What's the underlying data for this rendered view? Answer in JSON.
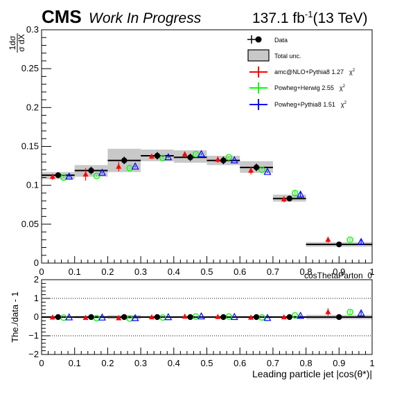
{
  "header": {
    "experiment": "CMS",
    "status": "Work In Progress",
    "lumi_value": "137.1 fb",
    "lumi_exp": "-1",
    "energy": "(13 TeV)"
  },
  "legend": {
    "data": "Data",
    "total_unc": "Total unc.",
    "chi2_symbol": "χ",
    "chi2_exp": "2"
  },
  "colors": {
    "data": "#000000",
    "band": "#c8c8c8",
    "amc": "#ff0000",
    "herwig": "#00ff00",
    "pythia": "#0000ff"
  },
  "chart_data": [
    {
      "type": "scatter",
      "panel": "main",
      "ylabel_num": "1dσ",
      "ylabel_den": "σ dX",
      "xlabel": "cosThetaParton_0",
      "xlim": [
        0,
        1
      ],
      "ylim": [
        0,
        0.3
      ],
      "x_ticks": [
        "0",
        "0.1",
        "0.2",
        "0.3",
        "0.4",
        "0.5",
        "0.6",
        "0.7",
        "0.8",
        "0.9",
        "1"
      ],
      "y_ticks": [
        "0",
        "0.05",
        "0.1",
        "0.15",
        "0.2",
        "0.25",
        "0.3"
      ],
      "bins": [
        [
          0,
          0.1
        ],
        [
          0.1,
          0.2
        ],
        [
          0.2,
          0.3
        ],
        [
          0.3,
          0.4
        ],
        [
          0.4,
          0.5
        ],
        [
          0.5,
          0.6
        ],
        [
          0.6,
          0.7
        ],
        [
          0.7,
          0.8
        ],
        [
          0.8,
          1.0
        ]
      ],
      "data": {
        "name": "Data",
        "x": [
          0.05,
          0.15,
          0.25,
          0.35,
          0.45,
          0.55,
          0.65,
          0.75,
          0.9
        ],
        "y": [
          0.113,
          0.119,
          0.132,
          0.138,
          0.136,
          0.132,
          0.123,
          0.083,
          0.024
        ],
        "err": [
          0.002,
          0.003,
          0.003,
          0.003,
          0.003,
          0.003,
          0.003,
          0.002,
          0.001
        ],
        "unc_low": [
          0.108,
          0.111,
          0.117,
          0.131,
          0.129,
          0.126,
          0.116,
          0.079,
          0.021
        ],
        "unc_high": [
          0.117,
          0.126,
          0.147,
          0.146,
          0.145,
          0.138,
          0.131,
          0.088,
          0.027
        ]
      },
      "series": [
        {
          "name": "amc@NLO+Pythia8",
          "chi2": "1.27",
          "x": [
            0.0333,
            0.1333,
            0.2333,
            0.3333,
            0.4333,
            0.5333,
            0.6333,
            0.7333,
            0.8667
          ],
          "y": [
            0.111,
            0.114,
            0.124,
            0.137,
            0.14,
            0.133,
            0.119,
            0.082,
            0.03
          ],
          "err": [
            0.004,
            0.008,
            0.006,
            0.003,
            0.002,
            0.004,
            0.005,
            0.004,
            0.004
          ]
        },
        {
          "name": "Powheg+Herwig",
          "chi2": "2.55",
          "x": [
            0.0667,
            0.1667,
            0.2667,
            0.3667,
            0.4667,
            0.5667,
            0.6667,
            0.7667,
            0.9333
          ],
          "y": [
            0.11,
            0.112,
            0.122,
            0.135,
            0.14,
            0.136,
            0.12,
            0.09,
            0.03
          ],
          "err": [
            0.001,
            0.001,
            0.001,
            0.001,
            0.001,
            0.001,
            0.001,
            0.004,
            0.002
          ]
        },
        {
          "name": "Powheg+Pythia8",
          "chi2": "1.51",
          "x": [
            0.0833,
            0.1833,
            0.2833,
            0.3833,
            0.4833,
            0.5833,
            0.6833,
            0.7833,
            0.9667
          ],
          "y": [
            0.111,
            0.116,
            0.124,
            0.136,
            0.14,
            0.132,
            0.117,
            0.088,
            0.027
          ],
          "err": [
            0.001,
            0.001,
            0.001,
            0.001,
            0.001,
            0.001,
            0.001,
            0.003,
            0.003
          ]
        }
      ]
    },
    {
      "type": "scatter",
      "panel": "ratio",
      "ylabel": "The./data - 1",
      "xlabel": "Leading particle  jet |cos(θ*)|",
      "xlim": [
        0,
        1
      ],
      "ylim": [
        -2,
        2
      ],
      "x_ticks": [
        "0",
        "0.1",
        "0.2",
        "0.3",
        "0.4",
        "0.5",
        "0.6",
        "0.7",
        "0.8",
        "0.9",
        "1"
      ],
      "y_ticks": [
        "−2",
        "−1",
        "0",
        "1",
        "2"
      ],
      "dotted_lines": [
        -1,
        1
      ],
      "data": {
        "x": [
          0.05,
          0.15,
          0.25,
          0.35,
          0.45,
          0.55,
          0.65,
          0.75,
          0.9
        ],
        "y": [
          0,
          0,
          0,
          0,
          0,
          0,
          0,
          0,
          0
        ],
        "unc_low": [
          -0.05,
          -0.07,
          -0.11,
          -0.05,
          -0.05,
          -0.05,
          -0.06,
          -0.05,
          -0.12
        ],
        "unc_high": [
          0.05,
          0.07,
          0.11,
          0.05,
          0.05,
          0.05,
          0.06,
          0.05,
          0.12
        ]
      },
      "series": [
        {
          "name": "amc@NLO+Pythia8",
          "x": [
            0.0333,
            0.1333,
            0.2333,
            0.3333,
            0.4333,
            0.5333,
            0.6333,
            0.7333,
            0.8667
          ],
          "y": [
            -0.02,
            -0.04,
            -0.06,
            -0.01,
            0.03,
            0.01,
            -0.03,
            -0.01,
            0.27
          ],
          "err": [
            0.04,
            0.07,
            0.05,
            0.03,
            0.02,
            0.03,
            0.04,
            0.05,
            0.2
          ]
        },
        {
          "name": "Powheg+Herwig",
          "x": [
            0.0667,
            0.1667,
            0.2667,
            0.3667,
            0.4667,
            0.5667,
            0.6667,
            0.7667,
            0.9333
          ],
          "y": [
            -0.03,
            -0.06,
            -0.08,
            -0.02,
            0.03,
            0.03,
            -0.02,
            0.09,
            0.27
          ],
          "err": [
            0.01,
            0.01,
            0.01,
            0.01,
            0.01,
            0.01,
            0.01,
            0.05,
            0.1
          ]
        },
        {
          "name": "Powheg+Pythia8",
          "x": [
            0.0833,
            0.1833,
            0.2833,
            0.3833,
            0.4833,
            0.5833,
            0.6833,
            0.7833,
            0.9667
          ],
          "y": [
            -0.02,
            -0.03,
            -0.06,
            -0.01,
            0.03,
            0,
            -0.05,
            0.06,
            0.2
          ],
          "err": [
            0.01,
            0.01,
            0.01,
            0.01,
            0.01,
            0.01,
            0.01,
            0.04,
            0.1
          ]
        }
      ]
    }
  ]
}
